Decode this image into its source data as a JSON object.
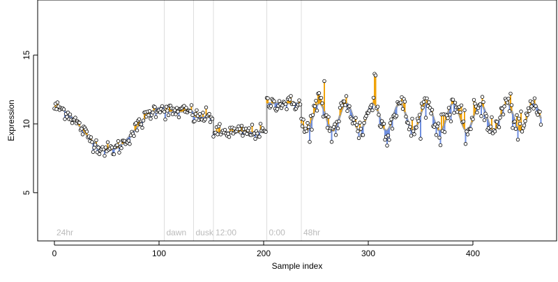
{
  "chart_data": {
    "type": "scatter",
    "xlabel": "Sample index",
    "ylabel": "Expression",
    "xlim": [
      -16,
      480
    ],
    "ylim": [
      1.5,
      19
    ],
    "x_ticks": [
      0,
      100,
      200,
      300,
      400
    ],
    "y_ticks": [
      5,
      10,
      15
    ],
    "grid": false,
    "phase_markers": [
      {
        "x": 0,
        "label": "24hr"
      },
      {
        "x": 105,
        "label": "dawn"
      },
      {
        "x": 133,
        "label": "dusk"
      },
      {
        "x": 152,
        "label": "12:00"
      },
      {
        "x": 203,
        "label": "0:00"
      },
      {
        "x": 236,
        "label": "48hr"
      }
    ],
    "segments": [
      {
        "x0": 0,
        "x1": 104,
        "kind": "sin",
        "base": 9.65,
        "amp": 1.55,
        "period": 104,
        "phase": 1.57
      },
      {
        "x0": 105,
        "x1": 132,
        "kind": "flat",
        "level": 10.9
      },
      {
        "x0": 133,
        "x1": 151,
        "kind": "flat",
        "level": 10.5
      },
      {
        "x0": 152,
        "x1": 202,
        "kind": "flat",
        "level": 9.4
      },
      {
        "x0": 203,
        "x1": 235,
        "kind": "flat",
        "level": 11.5
      },
      {
        "x0": 236,
        "x1": 465,
        "kind": "sin",
        "base": 10.5,
        "amp": 1.0,
        "period": 25.6,
        "phase": 3.6
      }
    ],
    "colors": {
      "fit": "#9e9e9e",
      "above": "#f0a30a",
      "below": "#6f8fe0",
      "point_stroke": "#000000",
      "phase_line": "#dddddd",
      "phase_label": "#bbbbbb"
    }
  }
}
